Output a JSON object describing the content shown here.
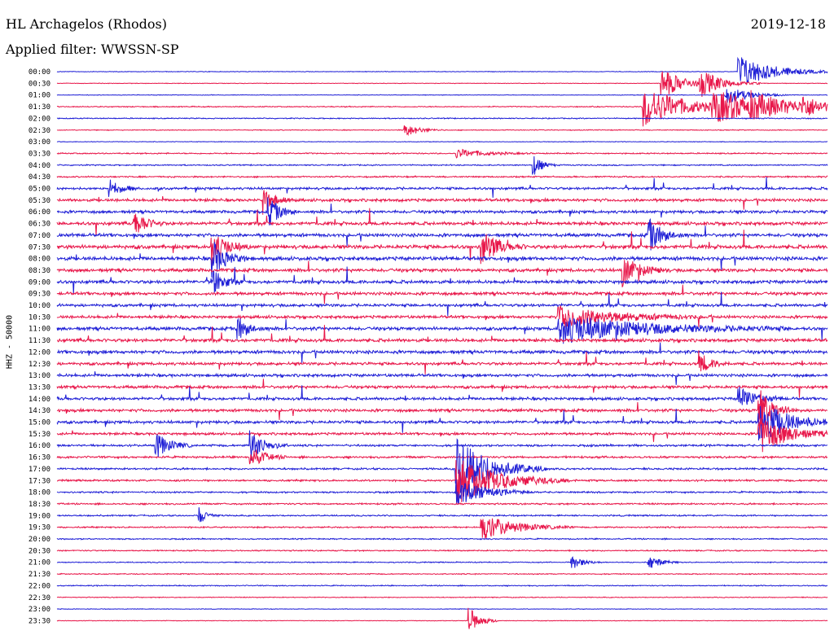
{
  "header": {
    "station": "HL Archagelos (Rhodos)",
    "filter": "Applied filter: WWSSN-SP",
    "date": "2019-12-18"
  },
  "chart_data": {
    "type": "line",
    "title": "HL Archagelos (Rhodos)",
    "subtitle": "Applied filter: WWSSN-SP",
    "date": "2019-12-18",
    "ylabel": "HHZ - 50000",
    "colors": {
      "even_trace": "#1f1fd6",
      "odd_trace": "#e8174a"
    },
    "rows": [
      "00:00",
      "00:30",
      "01:00",
      "01:30",
      "02:00",
      "02:30",
      "03:00",
      "03:30",
      "04:00",
      "04:30",
      "05:00",
      "05:30",
      "06:00",
      "06:30",
      "07:00",
      "07:30",
      "08:00",
      "08:30",
      "09:00",
      "09:30",
      "10:00",
      "10:30",
      "11:00",
      "11:30",
      "12:00",
      "12:30",
      "13:00",
      "13:30",
      "14:00",
      "14:30",
      "15:00",
      "15:30",
      "16:00",
      "16:30",
      "17:00",
      "17:30",
      "18:00",
      "18:30",
      "19:00",
      "19:30",
      "20:00",
      "20:30",
      "21:00",
      "21:30",
      "22:00",
      "22:30",
      "23:00",
      "23:30"
    ],
    "noise_level": [
      0.3,
      0.3,
      0.3,
      0.5,
      0.5,
      0.4,
      0.3,
      0.6,
      0.6,
      0.7,
      1.2,
      1.4,
      1.4,
      1.6,
      1.6,
      1.8,
      1.8,
      1.6,
      1.6,
      1.5,
      1.4,
      1.4,
      1.6,
      1.6,
      1.6,
      1.4,
      1.4,
      1.4,
      1.4,
      1.4,
      1.4,
      1.2,
      1.0,
      1.0,
      0.9,
      0.9,
      0.8,
      0.8,
      0.7,
      0.7,
      0.6,
      0.6,
      0.5,
      0.5,
      0.5,
      0.4,
      0.3,
      0.3
    ],
    "events": [
      {
        "row": 0,
        "minute": 26.5,
        "amplitude": 22,
        "duration": 1.2
      },
      {
        "row": 1,
        "minute": 23.5,
        "amplitude": 20,
        "duration": 0.8
      },
      {
        "row": 1,
        "minute": 25,
        "amplitude": 16,
        "duration": 0.8
      },
      {
        "row": 2,
        "minute": 26,
        "amplitude": 12,
        "duration": 0.8
      },
      {
        "row": 3,
        "minute": 22.8,
        "amplitude": 26,
        "duration": 1.5
      },
      {
        "row": 3,
        "minute": 25.5,
        "amplitude": 18,
        "duration": 2.0
      },
      {
        "row": 3,
        "minute": 27,
        "amplitude": 10,
        "duration": 1.5
      },
      {
        "row": 3,
        "minute": 29,
        "amplitude": 12,
        "duration": 0.5
      },
      {
        "row": 5,
        "minute": 13.5,
        "amplitude": 9,
        "duration": 0.5
      },
      {
        "row": 7,
        "minute": 15.5,
        "amplitude": 6,
        "duration": 1.0
      },
      {
        "row": 8,
        "minute": 18.5,
        "amplitude": 16,
        "duration": 0.3
      },
      {
        "row": 9,
        "minute": 30,
        "amplitude": 18,
        "duration": 0.4
      },
      {
        "row": 10,
        "minute": 2,
        "amplitude": 12,
        "duration": 0.4
      },
      {
        "row": 11,
        "minute": 8,
        "amplitude": 18,
        "duration": 0.4
      },
      {
        "row": 12,
        "minute": 8.2,
        "amplitude": 20,
        "duration": 0.4
      },
      {
        "row": 13,
        "minute": 3,
        "amplitude": 18,
        "duration": 0.4
      },
      {
        "row": 14,
        "minute": 23,
        "amplitude": 22,
        "duration": 0.5
      },
      {
        "row": 15,
        "minute": 6,
        "amplitude": 24,
        "duration": 0.5
      },
      {
        "row": 15,
        "minute": 16.5,
        "amplitude": 22,
        "duration": 0.6
      },
      {
        "row": 16,
        "minute": 6,
        "amplitude": 24,
        "duration": 0.5
      },
      {
        "row": 17,
        "minute": 22,
        "amplitude": 20,
        "duration": 0.6
      },
      {
        "row": 17,
        "minute": 31,
        "amplitude": 22,
        "duration": 0.6
      },
      {
        "row": 18,
        "minute": 6,
        "amplitude": 20,
        "duration": 0.4
      },
      {
        "row": 21,
        "minute": 19.5,
        "amplitude": 14,
        "duration": 2.0
      },
      {
        "row": 22,
        "minute": 19.5,
        "amplitude": 18,
        "duration": 3.0
      },
      {
        "row": 22,
        "minute": 7,
        "amplitude": 16,
        "duration": 0.4
      },
      {
        "row": 25,
        "minute": 25,
        "amplitude": 14,
        "duration": 0.4
      },
      {
        "row": 28,
        "minute": 26.5,
        "amplitude": 16,
        "duration": 0.6
      },
      {
        "row": 29,
        "minute": 27.3,
        "amplitude": 30,
        "duration": 0.5
      },
      {
        "row": 30,
        "minute": 27.3,
        "amplitude": 30,
        "duration": 1.0
      },
      {
        "row": 31,
        "minute": 27.3,
        "amplitude": 26,
        "duration": 1.0
      },
      {
        "row": 32,
        "minute": 3.8,
        "amplitude": 18,
        "duration": 0.5
      },
      {
        "row": 32,
        "minute": 7.5,
        "amplitude": 20,
        "duration": 0.5
      },
      {
        "row": 33,
        "minute": 7.5,
        "amplitude": 14,
        "duration": 0.5
      },
      {
        "row": 34,
        "minute": 15.5,
        "amplitude": 40,
        "duration": 1.2
      },
      {
        "row": 35,
        "minute": 15.5,
        "amplitude": 30,
        "duration": 1.5
      },
      {
        "row": 36,
        "minute": 15.5,
        "amplitude": 18,
        "duration": 1.0
      },
      {
        "row": 38,
        "minute": 5.5,
        "amplitude": 12,
        "duration": 0.3
      },
      {
        "row": 39,
        "minute": 16.5,
        "amplitude": 16,
        "duration": 1.2
      },
      {
        "row": 42,
        "minute": 20,
        "amplitude": 10,
        "duration": 0.4
      },
      {
        "row": 42,
        "minute": 23,
        "amplitude": 10,
        "duration": 0.4
      },
      {
        "row": 47,
        "minute": 16,
        "amplitude": 18,
        "duration": 0.4
      }
    ],
    "grid": false
  }
}
